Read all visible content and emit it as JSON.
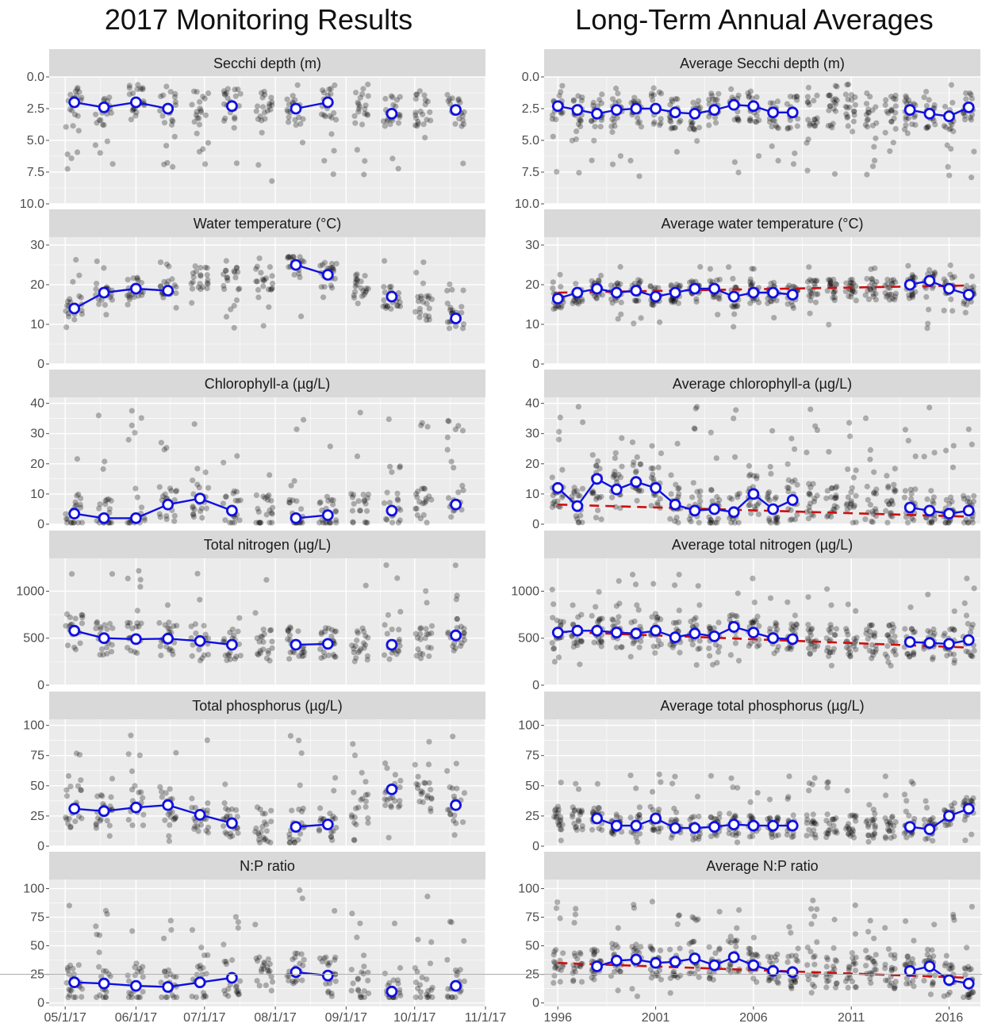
{
  "titles": {
    "left": "2017 Monitoring Results",
    "right": "Long-Term Annual Averages"
  },
  "colors": {
    "panel_bg": "#ebebeb",
    "strip_bg": "#d9d9d9",
    "grid_major": "#ffffff",
    "points": "#000000",
    "mean_line": "#1010e0",
    "trend_line": "#cc1010",
    "reference_line": "#a6a6a6"
  },
  "chart_data": [
    {
      "type": "scatter",
      "title": "Secchi depth (m)",
      "x_axis": "date",
      "x": [
        "05/05/17",
        "05/18/17",
        "06/01/17",
        "06/15/17",
        "06/29/17",
        "07/13/17",
        "07/27/17",
        "08/10/17",
        "08/24/17",
        "09/07/17",
        "09/21/17",
        "10/05/17",
        "10/19/17"
      ],
      "mean_values": [
        2.0,
        2.4,
        2.0,
        2.5,
        null,
        2.3,
        null,
        2.5,
        2.0,
        null,
        2.9,
        null,
        2.6
      ],
      "ylim": [
        10,
        0
      ],
      "y_reversed": true,
      "yticks": [
        0.0,
        2.5,
        5.0,
        7.5,
        10.0
      ],
      "ytick_labels": [
        "0.0",
        "2.5",
        "5.0",
        "7.5",
        "10.0"
      ],
      "points_range": [
        0.5,
        8.5
      ]
    },
    {
      "type": "scatter",
      "title": "Water temperature (°C)",
      "x_axis": "date",
      "x": [
        "05/05/17",
        "05/18/17",
        "06/01/17",
        "06/15/17",
        "06/29/17",
        "07/13/17",
        "07/27/17",
        "08/10/17",
        "08/24/17",
        "09/07/17",
        "09/21/17",
        "10/05/17",
        "10/19/17"
      ],
      "mean_values": [
        14,
        18,
        19,
        18.5,
        null,
        null,
        null,
        25,
        22.5,
        null,
        17,
        null,
        11.5
      ],
      "ylim": [
        0,
        32
      ],
      "yticks": [
        0,
        10,
        20,
        30
      ],
      "points_range": [
        9,
        27
      ]
    },
    {
      "type": "scatter",
      "title": "Chlorophyll-a (µg/L)",
      "x_axis": "date",
      "x": [
        "05/05/17",
        "05/18/17",
        "06/01/17",
        "06/15/17",
        "06/29/17",
        "07/13/17",
        "07/27/17",
        "08/10/17",
        "08/24/17",
        "09/07/17",
        "09/21/17",
        "10/05/17",
        "10/19/17"
      ],
      "mean_values": [
        3.5,
        2,
        2,
        6.5,
        8.5,
        4.5,
        null,
        2,
        3,
        null,
        4.5,
        null,
        6.5
      ],
      "ylim": [
        0,
        42
      ],
      "yticks": [
        0,
        10,
        20,
        30,
        40
      ],
      "points_range": [
        0.5,
        38
      ]
    },
    {
      "type": "scatter",
      "title": "Total nitrogen (µg/L)",
      "x_axis": "date",
      "x": [
        "05/05/17",
        "05/18/17",
        "06/01/17",
        "06/15/17",
        "06/29/17",
        "07/13/17",
        "07/27/17",
        "08/10/17",
        "08/24/17",
        "09/07/17",
        "09/21/17",
        "10/05/17",
        "10/19/17"
      ],
      "mean_values": [
        580,
        500,
        490,
        495,
        470,
        430,
        null,
        430,
        440,
        null,
        430,
        null,
        530
      ],
      "ylim": [
        0,
        1350
      ],
      "yticks": [
        0,
        500,
        1000
      ],
      "points_range": [
        230,
        1280
      ]
    },
    {
      "type": "scatter",
      "title": "Total phosphorus (µg/L)",
      "x_axis": "date",
      "x": [
        "05/05/17",
        "05/18/17",
        "06/01/17",
        "06/15/17",
        "06/29/17",
        "07/13/17",
        "07/27/17",
        "08/10/17",
        "08/24/17",
        "09/07/17",
        "09/21/17",
        "10/05/17",
        "10/19/17"
      ],
      "mean_values": [
        31,
        29,
        32,
        34,
        26,
        19,
        null,
        16,
        18,
        null,
        47,
        null,
        34
      ],
      "ylim": [
        0,
        105
      ],
      "yticks": [
        0,
        25,
        50,
        75,
        100
      ],
      "points_range": [
        3,
        92
      ]
    },
    {
      "type": "scatter",
      "title": "N:P ratio",
      "x_axis": "date",
      "x": [
        "05/05/17",
        "05/18/17",
        "06/01/17",
        "06/15/17",
        "06/29/17",
        "07/13/17",
        "07/27/17",
        "08/10/17",
        "08/24/17",
        "09/07/17",
        "09/21/17",
        "10/05/17",
        "10/19/17"
      ],
      "mean_values": [
        18,
        17,
        15,
        14,
        18,
        22,
        null,
        27,
        24,
        null,
        10,
        null,
        15
      ],
      "ylim": [
        -3,
        108
      ],
      "yticks": [
        0,
        25,
        50,
        75,
        100
      ],
      "reference_y": 25,
      "points_range": [
        5,
        103
      ],
      "xtick_labels": [
        "05/1/17",
        "06/1/17",
        "07/1/17",
        "08/1/17",
        "09/1/17",
        "10/1/17",
        "11/1/17"
      ],
      "xtick_dates": [
        "05/01/17",
        "06/01/17",
        "07/01/17",
        "08/01/17",
        "09/01/17",
        "10/01/17",
        "11/01/17"
      ]
    },
    {
      "type": "scatter",
      "title": "Average Secchi depth (m)",
      "x_axis": "year",
      "x": [
        1996,
        1997,
        1998,
        1999,
        2000,
        2001,
        2002,
        2003,
        2004,
        2005,
        2006,
        2007,
        2008,
        2009,
        2010,
        2011,
        2012,
        2013,
        2014,
        2015,
        2016,
        2017
      ],
      "mean_values": [
        2.3,
        2.6,
        2.9,
        2.6,
        2.5,
        2.5,
        2.8,
        2.9,
        2.6,
        2.2,
        2.3,
        2.8,
        2.8,
        null,
        null,
        null,
        null,
        null,
        2.6,
        2.9,
        3.1,
        2.4
      ],
      "ylim": [
        10,
        0
      ],
      "y_reversed": true,
      "yticks": [
        0.0,
        2.5,
        5.0,
        7.5,
        10.0
      ],
      "ytick_labels": [
        "0.0",
        "2.5",
        "5.0",
        "7.5",
        "10.0"
      ],
      "points_range": [
        0.5,
        8.0
      ]
    },
    {
      "type": "scatter",
      "title": "Average water temperature (°C)",
      "x_axis": "year",
      "x": [
        1996,
        1997,
        1998,
        1999,
        2000,
        2001,
        2002,
        2003,
        2004,
        2005,
        2006,
        2007,
        2008,
        2009,
        2010,
        2011,
        2012,
        2013,
        2014,
        2015,
        2016,
        2017
      ],
      "mean_values": [
        16.5,
        18,
        19,
        18,
        18.5,
        17,
        18,
        19,
        19,
        17,
        18,
        18,
        17.5,
        null,
        null,
        null,
        null,
        null,
        20,
        21,
        19,
        17.5
      ],
      "trend": [
        18.0,
        19.8
      ],
      "ylim": [
        0,
        32
      ],
      "yticks": [
        0,
        10,
        20,
        30
      ],
      "points_range": [
        9,
        25
      ]
    },
    {
      "type": "scatter",
      "title": "Average chlorophyll-a (µg/L)",
      "x_axis": "year",
      "x": [
        1996,
        1997,
        1998,
        1999,
        2000,
        2001,
        2002,
        2003,
        2004,
        2005,
        2006,
        2007,
        2008,
        2009,
        2010,
        2011,
        2012,
        2013,
        2014,
        2015,
        2016,
        2017
      ],
      "mean_values": [
        12,
        6,
        15,
        11.5,
        14,
        12,
        6.5,
        4.5,
        5,
        4,
        10,
        5,
        8,
        null,
        null,
        null,
        null,
        null,
        5.5,
        4.5,
        3.5,
        4.5
      ],
      "trend": [
        6.5,
        2.5
      ],
      "ylim": [
        0,
        42
      ],
      "yticks": [
        0,
        10,
        20,
        30,
        40
      ],
      "points_range": [
        0.5,
        39
      ]
    },
    {
      "type": "scatter",
      "title": "Average total nitrogen (µg/L)",
      "x_axis": "year",
      "x": [
        1996,
        1997,
        1998,
        1999,
        2000,
        2001,
        2002,
        2003,
        2004,
        2005,
        2006,
        2007,
        2008,
        2009,
        2010,
        2011,
        2012,
        2013,
        2014,
        2015,
        2016,
        2017
      ],
      "mean_values": [
        560,
        580,
        580,
        560,
        550,
        580,
        510,
        550,
        520,
        620,
        560,
        500,
        490,
        null,
        null,
        null,
        null,
        null,
        460,
        450,
        440,
        480
      ],
      "trend": [
        570,
        400
      ],
      "ylim": [
        0,
        1350
      ],
      "yticks": [
        0,
        500,
        1000
      ],
      "points_range": [
        200,
        1200
      ]
    },
    {
      "type": "scatter",
      "title": "Average total phosphorus (µg/L)",
      "x_axis": "year",
      "x": [
        1996,
        1997,
        1998,
        1999,
        2000,
        2001,
        2002,
        2003,
        2004,
        2005,
        2006,
        2007,
        2008,
        2009,
        2010,
        2011,
        2012,
        2013,
        2014,
        2015,
        2016,
        2017
      ],
      "mean_values": [
        null,
        null,
        23,
        17,
        17,
        23,
        15,
        15,
        16,
        18,
        17,
        17,
        17,
        null,
        null,
        null,
        null,
        null,
        16,
        14,
        25,
        31
      ],
      "ylim": [
        0,
        105
      ],
      "yticks": [
        0,
        25,
        50,
        75,
        100
      ],
      "points_range": [
        3,
        60
      ]
    },
    {
      "type": "scatter",
      "title": "Average N:P ratio",
      "x_axis": "year",
      "x": [
        1996,
        1997,
        1998,
        1999,
        2000,
        2001,
        2002,
        2003,
        2004,
        2005,
        2006,
        2007,
        2008,
        2009,
        2010,
        2011,
        2012,
        2013,
        2014,
        2015,
        2016,
        2017
      ],
      "mean_values": [
        null,
        null,
        32,
        37,
        38,
        35,
        36,
        39,
        33,
        40,
        33,
        28,
        27,
        null,
        null,
        null,
        null,
        null,
        28,
        32,
        20,
        17
      ],
      "trend": [
        35,
        22
      ],
      "ylim": [
        -3,
        108
      ],
      "yticks": [
        0,
        25,
        50,
        75,
        100
      ],
      "reference_y": 25,
      "points_range": [
        5,
        90
      ],
      "xtick_labels": [
        "1996",
        "2001",
        "2006",
        "2011",
        "2016"
      ],
      "xtick_years": [
        1996,
        2001,
        2006,
        2011,
        2016
      ]
    }
  ]
}
